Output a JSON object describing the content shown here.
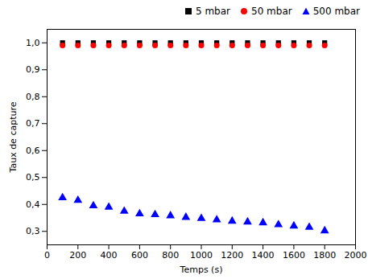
{
  "chart_data": {
    "type": "scatter",
    "xlabel": "Temps (s)",
    "ylabel": "Taux de capture",
    "xlim": [
      0,
      2000
    ],
    "ylim": [
      0.25,
      1.05
    ],
    "xticks": [
      0,
      200,
      400,
      600,
      800,
      1000,
      1200,
      1400,
      1600,
      1800,
      2000
    ],
    "yticks": [
      {
        "value": 0.3,
        "label": "0,3"
      },
      {
        "value": 0.4,
        "label": "0,4"
      },
      {
        "value": 0.5,
        "label": "0,5"
      },
      {
        "value": 0.6,
        "label": "0,6"
      },
      {
        "value": 0.7,
        "label": "0,7"
      },
      {
        "value": 0.8,
        "label": "0,8"
      },
      {
        "value": 0.9,
        "label": "0,9"
      },
      {
        "value": 1.0,
        "label": "1,0"
      }
    ],
    "x": [
      100,
      200,
      300,
      400,
      500,
      600,
      700,
      800,
      900,
      1000,
      1100,
      1200,
      1300,
      1400,
      1500,
      1600,
      1700,
      1800
    ],
    "series": [
      {
        "name": "5 mbar",
        "color": "#000000",
        "marker": "square",
        "values": [
          1.0,
          1.0,
          1.0,
          1.0,
          1.0,
          1.0,
          1.0,
          1.0,
          1.0,
          1.0,
          1.0,
          1.0,
          1.0,
          1.0,
          1.0,
          1.0,
          1.0,
          1.0
        ]
      },
      {
        "name": "50 mbar",
        "color": "#ff0000",
        "marker": "circle",
        "values": [
          0.99,
          0.99,
          0.99,
          0.99,
          0.99,
          0.99,
          0.99,
          0.99,
          0.99,
          0.99,
          0.99,
          0.99,
          0.99,
          0.99,
          0.99,
          0.99,
          0.99,
          0.99
        ]
      },
      {
        "name": "500 mbar",
        "color": "#0000ff",
        "marker": "triangle",
        "values": [
          0.425,
          0.415,
          0.395,
          0.39,
          0.375,
          0.365,
          0.362,
          0.358,
          0.352,
          0.348,
          0.343,
          0.338,
          0.335,
          0.332,
          0.325,
          0.32,
          0.315,
          0.302
        ]
      }
    ],
    "legend": "upper right",
    "grid": false
  }
}
